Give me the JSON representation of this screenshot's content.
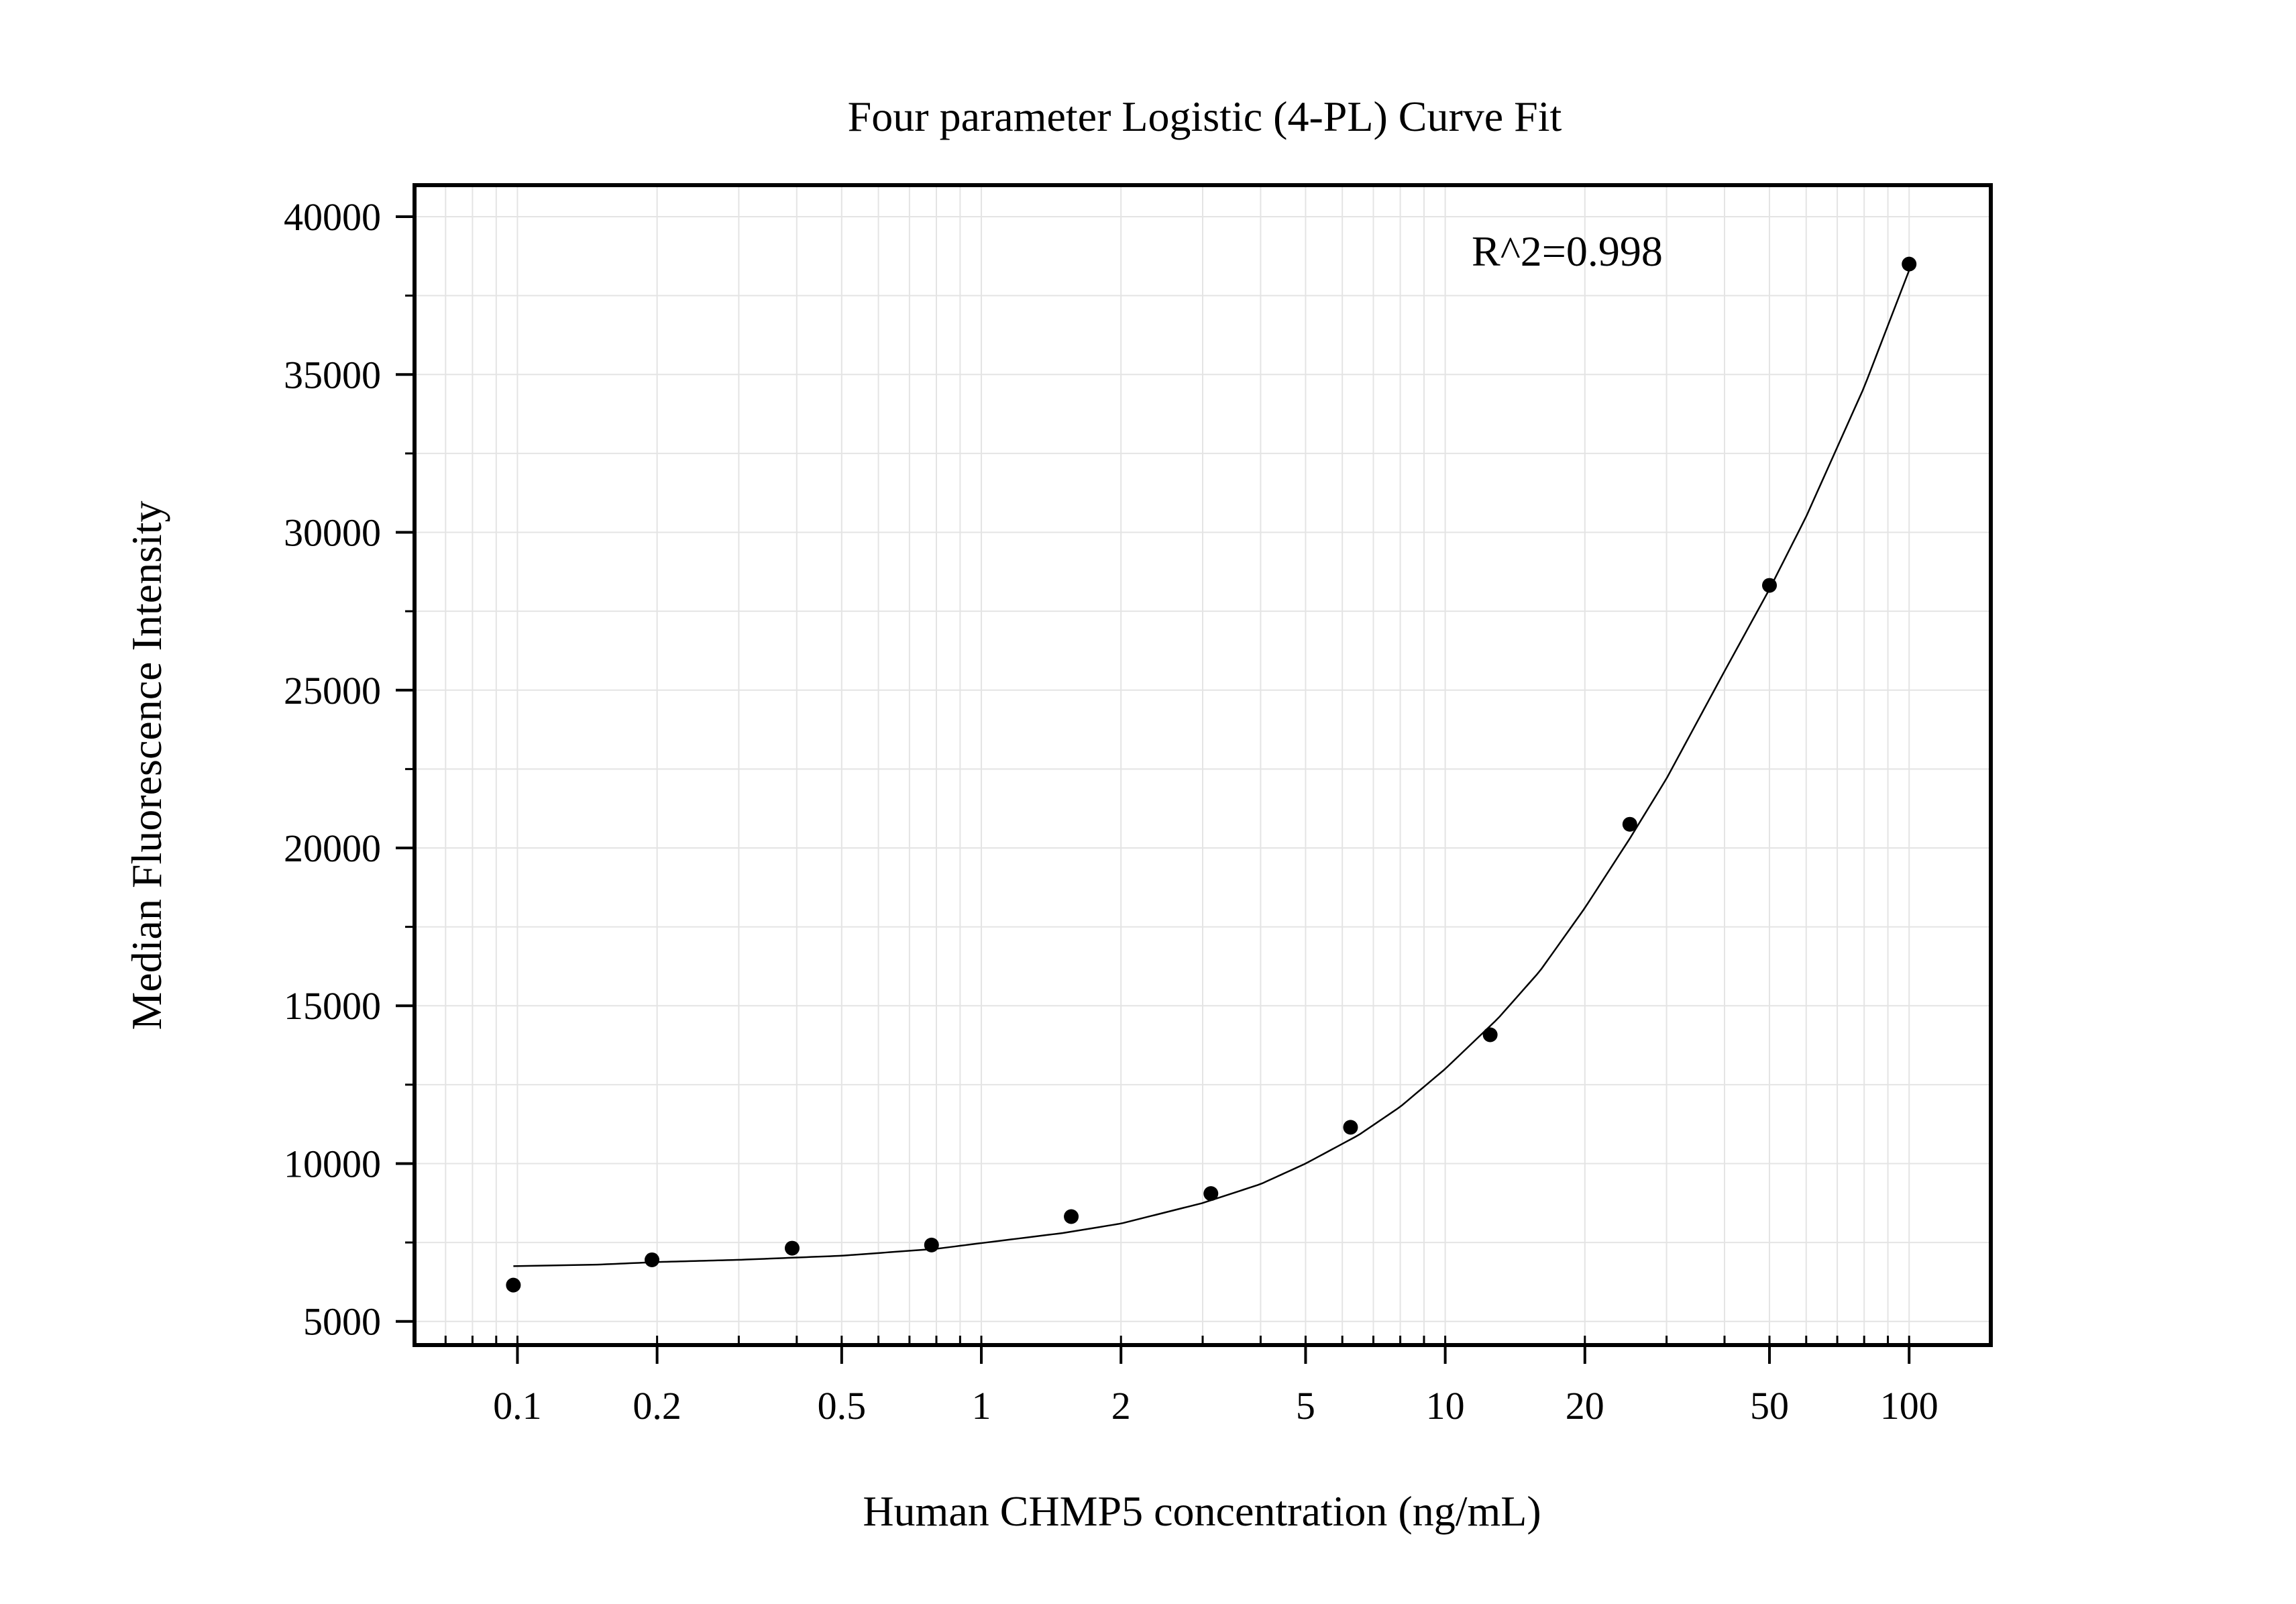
{
  "chart_data": {
    "type": "scatter",
    "title": "Four parameter Logistic (4-PL) Curve Fit",
    "xlabel": "Human CHMP5 concentration (ng/mL)",
    "ylabel": "Median Fluorescence Intensity",
    "x_scale": "log",
    "xlim": [
      0.06,
      150
    ],
    "ylim": [
      4250,
      41000
    ],
    "x_ticks": [
      0.1,
      0.2,
      0.5,
      1,
      2,
      5,
      10,
      20,
      50,
      100
    ],
    "x_tick_labels": [
      "0.1",
      "0.2",
      "0.5",
      "1",
      "2",
      "5",
      "10",
      "20",
      "50",
      "100"
    ],
    "y_ticks": [
      5000,
      10000,
      15000,
      20000,
      25000,
      30000,
      35000,
      40000
    ],
    "y_tick_labels": [
      "5000",
      "10000",
      "15000",
      "20000",
      "25000",
      "30000",
      "35000",
      "40000"
    ],
    "grid": true,
    "annotation": "R^2=0.998",
    "points": {
      "x": [
        0.098,
        0.195,
        0.391,
        0.781,
        1.5625,
        3.125,
        6.25,
        12.5,
        25,
        50,
        100
      ],
      "y": [
        6150,
        6950,
        7320,
        7420,
        8320,
        9050,
        11150,
        14080,
        20750,
        28320,
        38500
      ]
    },
    "fit_curve": {
      "x": [
        0.098,
        0.15,
        0.2,
        0.3,
        0.5,
        0.8,
        1,
        1.5,
        2,
        3,
        4,
        5,
        6.5,
        8,
        10,
        13,
        16,
        20,
        25,
        30,
        40,
        50,
        60,
        80,
        100
      ],
      "y": [
        6750,
        6800,
        6880,
        6950,
        7080,
        7300,
        7480,
        7800,
        8100,
        8750,
        9350,
        10000,
        10900,
        11800,
        13000,
        14600,
        16100,
        18100,
        20300,
        22200,
        25600,
        28200,
        30500,
        34600,
        38300
      ]
    },
    "colors": {
      "points": "#000000",
      "curve": "#000000",
      "grid": "#e4e4e4",
      "frame": "#000000"
    }
  }
}
